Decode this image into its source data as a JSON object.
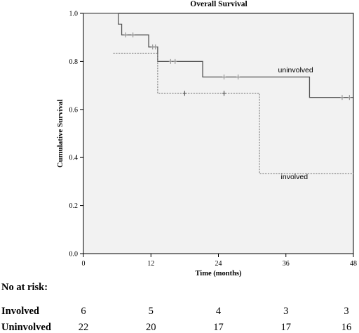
{
  "chart_data": {
    "type": "line",
    "title": "Overall Survival",
    "xlabel": "Time (months)",
    "ylabel": "Cumulative Survival",
    "xlim": [
      0,
      48
    ],
    "ylim": [
      0.0,
      1.0
    ],
    "x_ticks": [
      "0",
      "12",
      "24",
      "36",
      "48"
    ],
    "y_ticks": [
      "0.0",
      "0.2",
      "0.4",
      "0.6",
      "0.8",
      "1.0"
    ],
    "grid": false,
    "background": "#f2f2f2",
    "series": [
      {
        "name": "uninvolved",
        "style": "solid",
        "color": "#555555",
        "steps": [
          {
            "x": 0,
            "y": 1.0
          },
          {
            "x": 6.2,
            "y": 0.955
          },
          {
            "x": 6.8,
            "y": 0.91
          },
          {
            "x": 11.6,
            "y": 0.86
          },
          {
            "x": 13.2,
            "y": 0.8
          },
          {
            "x": 21.2,
            "y": 0.735
          },
          {
            "x": 40.2,
            "y": 0.65
          },
          {
            "x": 48,
            "y": 0.65
          }
        ],
        "censored": [
          {
            "x": 7.5,
            "y": 0.91
          },
          {
            "x": 8.8,
            "y": 0.91
          },
          {
            "x": 12.3,
            "y": 0.86
          },
          {
            "x": 12.8,
            "y": 0.86
          },
          {
            "x": 15.5,
            "y": 0.8
          },
          {
            "x": 16.3,
            "y": 0.8
          },
          {
            "x": 25.0,
            "y": 0.735
          },
          {
            "x": 27.5,
            "y": 0.735
          },
          {
            "x": 46.0,
            "y": 0.65
          },
          {
            "x": 47.3,
            "y": 0.65
          }
        ]
      },
      {
        "name": "involved",
        "style": "dashed",
        "color": "#888888",
        "steps": [
          {
            "x": 5.3,
            "y": 0.833
          },
          {
            "x": 13.2,
            "y": 0.667
          },
          {
            "x": 31.3,
            "y": 0.333
          },
          {
            "x": 48,
            "y": 0.333
          }
        ],
        "censored": [
          {
            "x": 18.0,
            "y": 0.667
          },
          {
            "x": 25.0,
            "y": 0.667
          }
        ]
      }
    ],
    "annotations": [
      {
        "text": "uninvolved",
        "x": 34.6,
        "y": 0.755
      },
      {
        "text": "involved",
        "x": 35.1,
        "y": 0.31
      }
    ],
    "risk_table": {
      "heading": "No at risk:",
      "timepoints": [
        0,
        12,
        24,
        36,
        48
      ],
      "rows": [
        {
          "label": "Involved",
          "values": [
            "6",
            "5",
            "4",
            "3",
            "3"
          ]
        },
        {
          "label": "Uninvolved",
          "values": [
            "22",
            "20",
            "17",
            "17",
            "16"
          ]
        }
      ]
    }
  }
}
